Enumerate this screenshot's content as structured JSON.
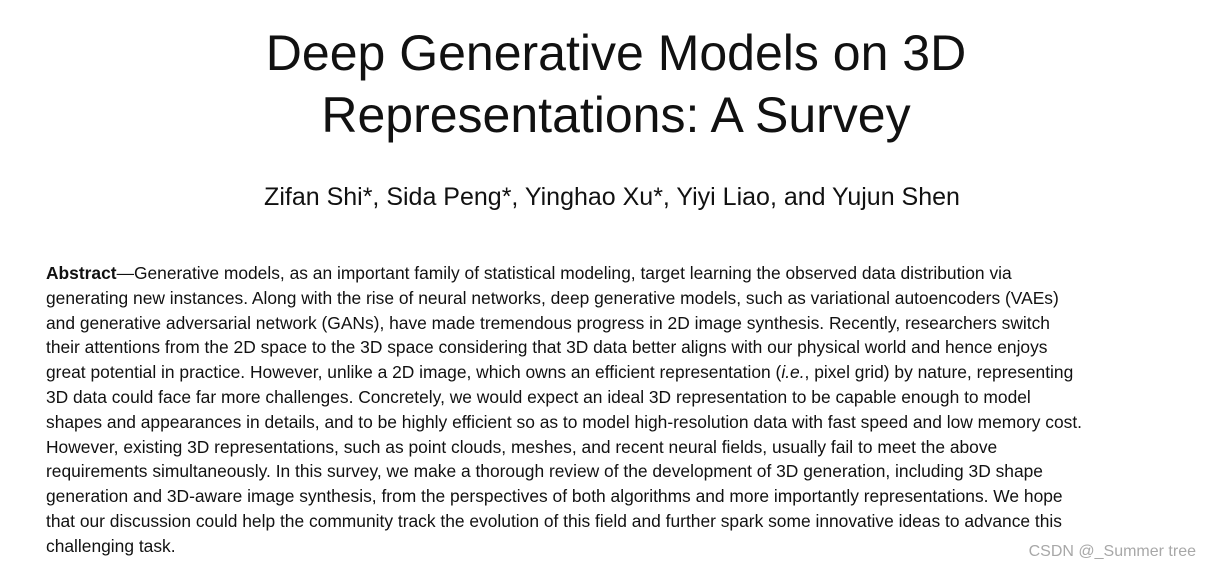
{
  "paper": {
    "title_line_1": "Deep Generative Models on 3D",
    "title_line_2": "Representations: A Survey",
    "authors": "Zifan Shi*, Sida Peng*, Yinghao Xu*, Yiyi Liao, and Yujun Shen",
    "abstract": {
      "label": "Abstract",
      "lines": [
        "—Generative models, as an important family of statistical modeling, target learning the observed data distribution via",
        "generating new instances. Along with the rise of neural networks, deep generative models, such as variational autoencoders (VAEs)",
        "and generative adversarial network (GANs), have made tremendous progress in 2D image synthesis. Recently, researchers switch",
        "their attentions from the 2D space to the 3D space considering that 3D data better aligns with our physical world and hence enjoys",
        "great potential in practice. However, unlike a 2D image, which owns an efficient representation (",
        "i.e.",
        ", pixel grid) by nature, representing",
        "3D data could face far more challenges. Concretely, we would expect an ideal 3D representation to be capable enough to model",
        "shapes and appearances in details, and to be highly efficient so as to model high-resolution data with fast speed and low memory cost.",
        "However, existing 3D representations, such as point clouds, meshes, and recent neural fields, usually fail to meet the above",
        "requirements simultaneously. In this survey, we make a thorough review of the development of 3D generation, including 3D shape",
        "generation and 3D-aware image synthesis, from the perspectives of both algorithms and more importantly representations. We hope",
        "that our discussion could help the community track the evolution of this field and further spark some innovative ideas to advance this",
        "challenging task."
      ]
    }
  },
  "watermark": "CSDN @_Summer tree"
}
